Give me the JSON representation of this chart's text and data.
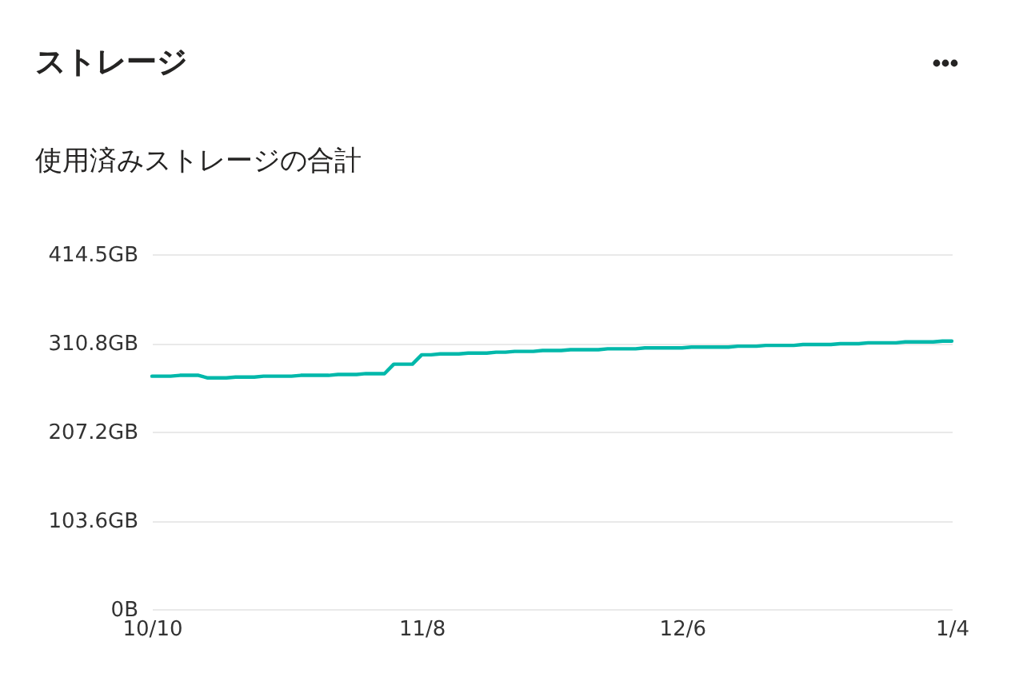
{
  "chart_data": {
    "type": "line",
    "title": "ストレージ",
    "subtitle": "使用済みストレージの合計",
    "categories": [
      "10/10",
      null,
      null,
      null,
      null,
      null,
      null,
      null,
      null,
      null,
      null,
      null,
      null,
      null,
      null,
      null,
      null,
      null,
      null,
      null,
      null,
      null,
      null,
      null,
      null,
      null,
      null,
      null,
      null,
      "11/8",
      null,
      null,
      null,
      null,
      null,
      null,
      null,
      null,
      null,
      null,
      null,
      null,
      null,
      null,
      null,
      null,
      null,
      null,
      null,
      null,
      null,
      null,
      null,
      null,
      null,
      null,
      null,
      "12/6",
      null,
      null,
      null,
      null,
      null,
      null,
      null,
      null,
      null,
      null,
      null,
      null,
      null,
      null,
      null,
      null,
      null,
      null,
      null,
      null,
      null,
      null,
      null,
      null,
      null,
      null,
      null,
      null,
      "1/4"
    ],
    "values": [
      272,
      272,
      272,
      273,
      273,
      273,
      270,
      270,
      270,
      271,
      271,
      271,
      272,
      272,
      272,
      272,
      273,
      273,
      273,
      273,
      274,
      274,
      274,
      275,
      275,
      275,
      286,
      286,
      286,
      297,
      297,
      298,
      298,
      298,
      299,
      299,
      299,
      300,
      300,
      301,
      301,
      301,
      302,
      302,
      302,
      303,
      303,
      303,
      303,
      304,
      304,
      304,
      304,
      305,
      305,
      305,
      305,
      305,
      306,
      306,
      306,
      306,
      306,
      307,
      307,
      307,
      308,
      308,
      308,
      308,
      309,
      309,
      309,
      309,
      310,
      310,
      310,
      311,
      311,
      311,
      311,
      312,
      312,
      312,
      312,
      313,
      313
    ],
    "color": "#01b8aa",
    "ylim": [
      0,
      414.5
    ],
    "yticks": [
      {
        "value": 0,
        "label": "0B"
      },
      {
        "value": 103.6,
        "label": "103.6GB"
      },
      {
        "value": 207.2,
        "label": "207.2GB"
      },
      {
        "value": 310.8,
        "label": "310.8GB"
      },
      {
        "value": 414.5,
        "label": "414.5GB"
      }
    ],
    "grid": "y"
  }
}
